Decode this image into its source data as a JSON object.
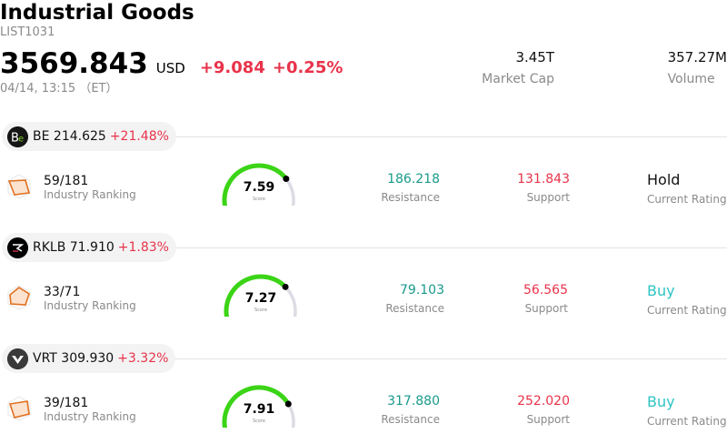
{
  "header": {
    "title": "Industrial Goods",
    "code": "LIST1031",
    "price": "3569.843",
    "currency": "USD",
    "change": "+9.084",
    "change_pct": "+0.25%",
    "time": "04/14, 13:15 （ET）",
    "market_cap": {
      "value": "3.45T",
      "label": "Market Cap"
    },
    "volume": {
      "value": "357.27M",
      "label": "Volume"
    }
  },
  "colors": {
    "up": "#e8334a",
    "resistance": "#199a8b",
    "buy": "#2ec4c4",
    "gauge": "#3bd416",
    "gauge_track": "#dcdce4"
  },
  "stocks": [
    {
      "ticker": "BE",
      "price": "214.625",
      "change_pct": "+21.48%",
      "logo_icon": "bloom-energy-logo-icon",
      "ranking": "59/181",
      "ranking_label": "Industry Ranking",
      "score": 7.59,
      "score_text": "7.59",
      "score_label": "Score",
      "resistance": "186.218",
      "resistance_label": "Resistance",
      "support": "131.843",
      "support_label": "Support",
      "rating": "Hold",
      "rating_label": "Current Rating",
      "rating_color": "#111111"
    },
    {
      "ticker": "RKLB",
      "price": "71.910",
      "change_pct": "+1.83%",
      "logo_icon": "rocket-lab-logo-icon",
      "ranking": "33/71",
      "ranking_label": "Industry Ranking",
      "score": 7.27,
      "score_text": "7.27",
      "score_label": "Score",
      "resistance": "79.103",
      "resistance_label": "Resistance",
      "support": "56.565",
      "support_label": "Support",
      "rating": "Buy",
      "rating_label": "Current Rating",
      "rating_color": "#2ec4c4"
    },
    {
      "ticker": "VRT",
      "price": "309.930",
      "change_pct": "+3.32%",
      "logo_icon": "vertiv-logo-icon",
      "ranking": "39/181",
      "ranking_label": "Industry Ranking",
      "score": 7.91,
      "score_text": "7.91",
      "score_label": "Score",
      "resistance": "317.880",
      "resistance_label": "Resistance",
      "support": "252.020",
      "support_label": "Support",
      "rating": "Buy",
      "rating_label": "Current Rating",
      "rating_color": "#2ec4c4"
    }
  ]
}
